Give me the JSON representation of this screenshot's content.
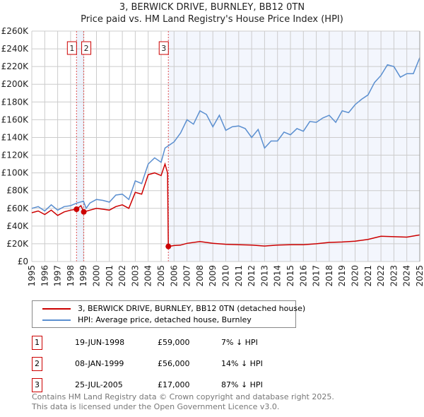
{
  "title": "3, BERWICK DRIVE, BURNLEY, BB12 0TN",
  "subtitle": "Price paid vs. HM Land Registry's House Price Index (HPI)",
  "chart_data": {
    "type": "line",
    "xlim": [
      1995,
      2025
    ],
    "ylim": [
      0,
      260000
    ],
    "y_ticks": [
      0,
      20000,
      40000,
      60000,
      80000,
      100000,
      120000,
      140000,
      160000,
      180000,
      200000,
      220000,
      240000,
      260000
    ],
    "y_tick_labels": [
      "£0",
      "£20K",
      "£40K",
      "£60K",
      "£80K",
      "£100K",
      "£120K",
      "£140K",
      "£160K",
      "£180K",
      "£200K",
      "£220K",
      "£240K",
      "£260K"
    ],
    "x_tick_labels": [
      "1995",
      "1996",
      "1997",
      "1998",
      "1999",
      "2000",
      "2001",
      "2002",
      "2003",
      "2004",
      "2005",
      "2006",
      "2007",
      "2008",
      "2009",
      "2010",
      "2011",
      "2012",
      "2013",
      "2014",
      "2015",
      "2016",
      "2017",
      "2018",
      "2019",
      "2020",
      "2021",
      "2022",
      "2023",
      "2024",
      "2025"
    ],
    "grid": true,
    "series": [
      {
        "name": "3, BERWICK DRIVE, BURNLEY, BB12 0TN (detached house)",
        "color": "#cc0000",
        "x": [
          1995,
          1995.5,
          1996,
          1996.5,
          1997,
          1997.5,
          1998,
          1998.46,
          1998.8,
          1999.02,
          1999.5,
          2000,
          2000.5,
          2001,
          2001.5,
          2002,
          2002.5,
          2003,
          2003.5,
          2004,
          2004.5,
          2005,
          2005.3,
          2005.5,
          2005.56,
          2006,
          2006.5,
          2007,
          2008,
          2009,
          2010,
          2011,
          2012,
          2013,
          2014,
          2015,
          2016,
          2017,
          2018,
          2019,
          2020,
          2021,
          2022,
          2023,
          2024,
          2025
        ],
        "y": [
          55000,
          57000,
          53000,
          58000,
          52000,
          56000,
          58000,
          59000,
          63000,
          56000,
          58000,
          60000,
          59000,
          58000,
          62000,
          64000,
          60000,
          78000,
          76000,
          98000,
          100000,
          97000,
          110000,
          100000,
          17000,
          18000,
          18500,
          20500,
          22500,
          20500,
          19500,
          19000,
          18500,
          17500,
          18500,
          19000,
          19000,
          20000,
          21500,
          22000,
          23000,
          25000,
          28500,
          28000,
          27500,
          30000
        ]
      },
      {
        "name": "HPI: Average price, detached house, Burnley",
        "color": "#5b8fd0",
        "x": [
          1995,
          1995.5,
          1996,
          1996.5,
          1997,
          1997.5,
          1998,
          1998.5,
          1999,
          1999.2,
          1999.5,
          2000,
          2000.5,
          2001,
          2001.5,
          2002,
          2002.5,
          2003,
          2003.5,
          2004,
          2004.5,
          2005,
          2005.3,
          2005.6,
          2006,
          2006.5,
          2007,
          2007.5,
          2008,
          2008.5,
          2009,
          2009.5,
          2010,
          2010.5,
          2011,
          2011.5,
          2012,
          2012.5,
          2013,
          2013.5,
          2014,
          2014.5,
          2015,
          2015.5,
          2016,
          2016.5,
          2017,
          2017.5,
          2018,
          2018.5,
          2019,
          2019.5,
          2020,
          2020.5,
          2021,
          2021.5,
          2022,
          2022.5,
          2023,
          2023.5,
          2024,
          2024.5,
          2025
        ],
        "y": [
          60000,
          62000,
          57000,
          64000,
          58000,
          62000,
          63000,
          66000,
          68000,
          60000,
          66000,
          70000,
          69000,
          67000,
          75000,
          76000,
          70000,
          91000,
          88000,
          110000,
          117000,
          112000,
          128000,
          131000,
          135000,
          145000,
          160000,
          155000,
          170000,
          166000,
          152000,
          165000,
          148000,
          152000,
          153000,
          150000,
          140000,
          149000,
          128000,
          136000,
          136000,
          146000,
          143000,
          150000,
          147000,
          158000,
          157000,
          162000,
          165000,
          157000,
          170000,
          168000,
          177000,
          183000,
          188000,
          202000,
          210000,
          222000,
          220000,
          208000,
          212000,
          212000,
          230000
        ]
      }
    ],
    "sales": [
      {
        "label": "1",
        "x": 1998.46,
        "y": 59000
      },
      {
        "label": "2",
        "x": 1999.02,
        "y": 56000
      },
      {
        "label": "3",
        "x": 2005.56,
        "y": 17000
      }
    ]
  },
  "legend": {
    "property": "3, BERWICK DRIVE, BURNLEY, BB12 0TN (detached house)",
    "hpi": "HPI: Average price, detached house, Burnley"
  },
  "transactions": [
    {
      "num": "1",
      "date": "19-JUN-1998",
      "price": "£59,000",
      "hpi": "7% ↓ HPI"
    },
    {
      "num": "2",
      "date": "08-JAN-1999",
      "price": "£56,000",
      "hpi": "14% ↓ HPI"
    },
    {
      "num": "3",
      "date": "25-JUL-2005",
      "price": "£17,000",
      "hpi": "87% ↓ HPI"
    }
  ],
  "footer": {
    "line1": "Contains HM Land Registry data © Crown copyright and database right 2025.",
    "line2": "This data is licensed under the Open Government Licence v3.0."
  }
}
